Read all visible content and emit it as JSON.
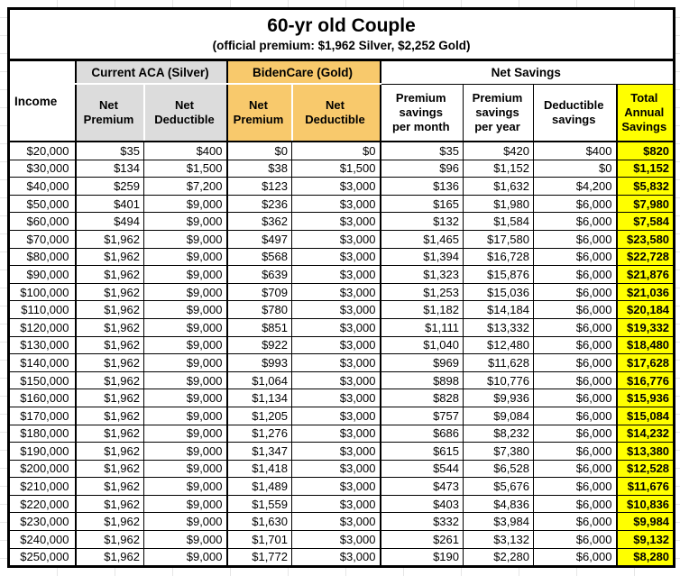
{
  "chart_data": {
    "type": "table",
    "title": "60-yr old Couple",
    "subtitle": "(official premium: $1,962 Silver, $2,252 Gold)",
    "income_header": "Income",
    "groups": {
      "silver": "Current ACA (Silver)",
      "gold": "BidenCare (Gold)",
      "net_savings": "Net Savings"
    },
    "sub_headers": [
      "Net\nPremium",
      "Net\nDeductible",
      "Net\nPremium",
      "Net\nDeductible",
      "Premium\nsavings\nper month",
      "Premium\nsavings\nper year",
      "Deductible\nsavings",
      "Total\nAnnual\nSavings"
    ],
    "rows": [
      [
        "$20,000",
        "$35",
        "$400",
        "$0",
        "$0",
        "$35",
        "$420",
        "$400",
        "$820"
      ],
      [
        "$30,000",
        "$134",
        "$1,500",
        "$38",
        "$1,500",
        "$96",
        "$1,152",
        "$0",
        "$1,152"
      ],
      [
        "$40,000",
        "$259",
        "$7,200",
        "$123",
        "$3,000",
        "$136",
        "$1,632",
        "$4,200",
        "$5,832"
      ],
      [
        "$50,000",
        "$401",
        "$9,000",
        "$236",
        "$3,000",
        "$165",
        "$1,980",
        "$6,000",
        "$7,980"
      ],
      [
        "$60,000",
        "$494",
        "$9,000",
        "$362",
        "$3,000",
        "$132",
        "$1,584",
        "$6,000",
        "$7,584"
      ],
      [
        "$70,000",
        "$1,962",
        "$9,000",
        "$497",
        "$3,000",
        "$1,465",
        "$17,580",
        "$6,000",
        "$23,580"
      ],
      [
        "$80,000",
        "$1,962",
        "$9,000",
        "$568",
        "$3,000",
        "$1,394",
        "$16,728",
        "$6,000",
        "$22,728"
      ],
      [
        "$90,000",
        "$1,962",
        "$9,000",
        "$639",
        "$3,000",
        "$1,323",
        "$15,876",
        "$6,000",
        "$21,876"
      ],
      [
        "$100,000",
        "$1,962",
        "$9,000",
        "$709",
        "$3,000",
        "$1,253",
        "$15,036",
        "$6,000",
        "$21,036"
      ],
      [
        "$110,000",
        "$1,962",
        "$9,000",
        "$780",
        "$3,000",
        "$1,182",
        "$14,184",
        "$6,000",
        "$20,184"
      ],
      [
        "$120,000",
        "$1,962",
        "$9,000",
        "$851",
        "$3,000",
        "$1,111",
        "$13,332",
        "$6,000",
        "$19,332"
      ],
      [
        "$130,000",
        "$1,962",
        "$9,000",
        "$922",
        "$3,000",
        "$1,040",
        "$12,480",
        "$6,000",
        "$18,480"
      ],
      [
        "$140,000",
        "$1,962",
        "$9,000",
        "$993",
        "$3,000",
        "$969",
        "$11,628",
        "$6,000",
        "$17,628"
      ],
      [
        "$150,000",
        "$1,962",
        "$9,000",
        "$1,064",
        "$3,000",
        "$898",
        "$10,776",
        "$6,000",
        "$16,776"
      ],
      [
        "$160,000",
        "$1,962",
        "$9,000",
        "$1,134",
        "$3,000",
        "$828",
        "$9,936",
        "$6,000",
        "$15,936"
      ],
      [
        "$170,000",
        "$1,962",
        "$9,000",
        "$1,205",
        "$3,000",
        "$757",
        "$9,084",
        "$6,000",
        "$15,084"
      ],
      [
        "$180,000",
        "$1,962",
        "$9,000",
        "$1,276",
        "$3,000",
        "$686",
        "$8,232",
        "$6,000",
        "$14,232"
      ],
      [
        "$190,000",
        "$1,962",
        "$9,000",
        "$1,347",
        "$3,000",
        "$615",
        "$7,380",
        "$6,000",
        "$13,380"
      ],
      [
        "$200,000",
        "$1,962",
        "$9,000",
        "$1,418",
        "$3,000",
        "$544",
        "$6,528",
        "$6,000",
        "$12,528"
      ],
      [
        "$210,000",
        "$1,962",
        "$9,000",
        "$1,489",
        "$3,000",
        "$473",
        "$5,676",
        "$6,000",
        "$11,676"
      ],
      [
        "$220,000",
        "$1,962",
        "$9,000",
        "$1,559",
        "$3,000",
        "$403",
        "$4,836",
        "$6,000",
        "$10,836"
      ],
      [
        "$230,000",
        "$1,962",
        "$9,000",
        "$1,630",
        "$3,000",
        "$332",
        "$3,984",
        "$6,000",
        "$9,984"
      ],
      [
        "$240,000",
        "$1,962",
        "$9,000",
        "$1,701",
        "$3,000",
        "$261",
        "$3,132",
        "$6,000",
        "$9,132"
      ],
      [
        "$250,000",
        "$1,962",
        "$9,000",
        "$1,772",
        "$3,000",
        "$190",
        "$2,280",
        "$6,000",
        "$8,280"
      ]
    ],
    "layout_hints": {
      "grid": "on",
      "thick_section_borders": true
    }
  },
  "colors": {
    "silver_header_bg": "#DCDCDC",
    "gold_header_bg": "#F8C96C",
    "total_column_bg": "#FFFF00",
    "border": "#000000",
    "margin_gridline": "#E6E6E6"
  }
}
